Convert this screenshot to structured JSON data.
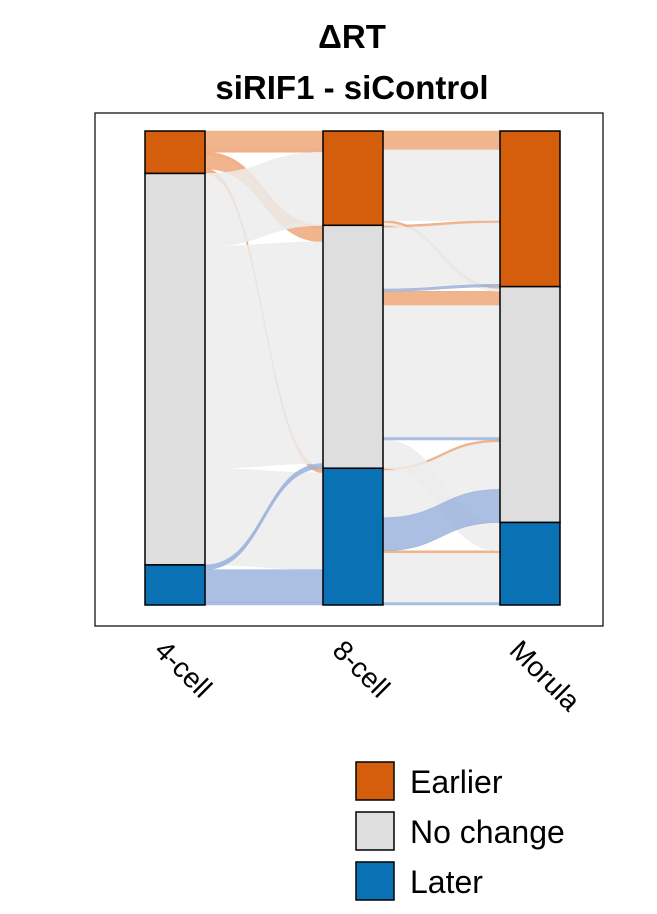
{
  "chart_data": {
    "type": "alluvial",
    "title": "ΔRT",
    "subtitle": "siRIF1 - siControl",
    "stages": [
      "4-cell",
      "8-cell",
      "Morula"
    ],
    "categories": [
      "Earlier",
      "No change",
      "Later"
    ],
    "colors": {
      "Earlier": "#d55e0d",
      "No change": "#dedede",
      "Later": "#0a72b4",
      "flow_Earlier": "#eea87a",
      "flow_No change": "#ececec",
      "flow_Later": "#9bb4dc"
    },
    "stage_totals": {
      "4-cell": {
        "Earlier": 9,
        "No change": 83,
        "Later": 8
      },
      "8-cell": {
        "Earlier": 20,
        "No change": 51,
        "Later": 29
      },
      "Morula": {
        "Earlier": 33,
        "No change": 50,
        "Later": 17
      }
    },
    "flows": [
      {
        "path": [
          "Earlier",
          "Earlier",
          "Earlier"
        ],
        "value": 4
      },
      {
        "path": [
          "Earlier",
          "Earlier",
          "No change"
        ],
        "value": 0.5
      },
      {
        "path": [
          "Earlier",
          "No change",
          "No change"
        ],
        "value": 3
      },
      {
        "path": [
          "Earlier",
          "No change",
          "Earlier"
        ],
        "value": 0.5
      },
      {
        "path": [
          "Earlier",
          "Later",
          "Later"
        ],
        "value": 0.5
      },
      {
        "path": [
          "Earlier",
          "Later",
          "No change"
        ],
        "value": 0.5
      },
      {
        "path": [
          "No change",
          "Earlier",
          "Earlier"
        ],
        "value": 15
      },
      {
        "path": [
          "No change",
          "Earlier",
          "No change"
        ],
        "value": 0.5
      },
      {
        "path": [
          "No change",
          "No change",
          "Earlier"
        ],
        "value": 13
      },
      {
        "path": [
          "No change",
          "No change",
          "No change"
        ],
        "value": 28
      },
      {
        "path": [
          "No change",
          "No change",
          "Later"
        ],
        "value": 6
      },
      {
        "path": [
          "No change",
          "Later",
          "No change"
        ],
        "value": 10
      },
      {
        "path": [
          "No change",
          "Later",
          "Later"
        ],
        "value": 10.5
      },
      {
        "path": [
          "Later",
          "No change",
          "No change"
        ],
        "value": 0.5
      },
      {
        "path": [
          "Later",
          "No change",
          "Earlier"
        ],
        "value": 0.5
      },
      {
        "path": [
          "Later",
          "Later",
          "No change"
        ],
        "value": 7
      },
      {
        "path": [
          "Later",
          "Later",
          "Later"
        ],
        "value": 0.5
      }
    ],
    "legend": {
      "position": "bottom-right",
      "entries": [
        "Earlier",
        "No change",
        "Later"
      ]
    }
  }
}
